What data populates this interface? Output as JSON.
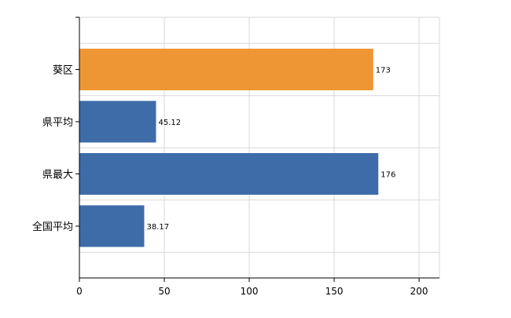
{
  "chart_data": {
    "type": "bar",
    "orientation": "horizontal",
    "categories": [
      "葵区",
      "県平均",
      "県最大",
      "全国平均"
    ],
    "values": [
      173,
      45.12,
      176,
      38.17
    ],
    "value_labels": [
      "173",
      "45.12",
      "176",
      "38.17"
    ],
    "bar_colors": [
      "#ee9633",
      "#3d6ca8",
      "#3d6ca8",
      "#3d6ca8"
    ],
    "x_ticks": [
      0,
      50,
      100,
      150,
      200
    ],
    "x_tick_labels": [
      "0",
      "50",
      "100",
      "150",
      "200"
    ],
    "xlim": [
      0,
      212
    ],
    "grid": true,
    "legend": "none",
    "title": "",
    "xlabel": "",
    "ylabel": ""
  }
}
